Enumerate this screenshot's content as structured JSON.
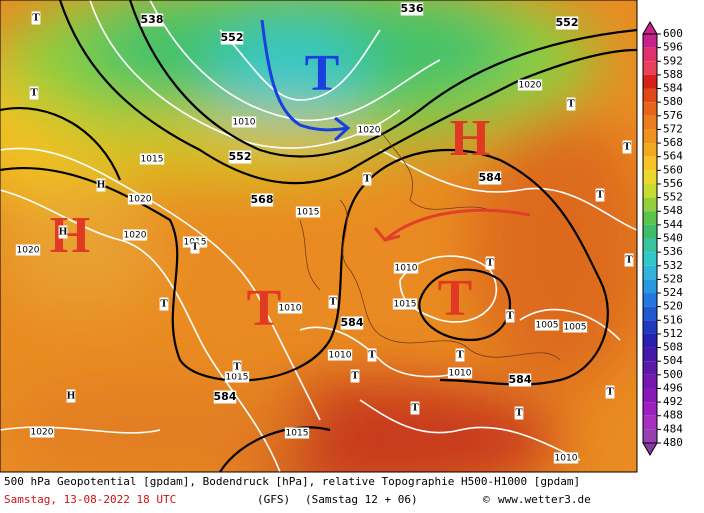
{
  "map": {
    "geopotential_labels": [
      "538",
      "552",
      "536",
      "552",
      "552",
      "568",
      "584",
      "584",
      "584",
      "584"
    ],
    "pressure_labels": [
      "1020",
      "1020",
      "1020",
      "1015",
      "1015",
      "1015",
      "1010",
      "1010",
      "1010",
      "1015",
      "1005",
      "1005",
      "1020",
      "1020",
      "1015",
      "1010",
      "1010",
      "1020",
      "1010",
      "1015"
    ],
    "red_systems": [
      "H",
      "H",
      "T",
      "T"
    ],
    "blue_systems": [
      "T"
    ],
    "small_systems": [
      "T",
      "T",
      "H",
      "H",
      "T",
      "T",
      "T",
      "H",
      "T",
      "T",
      "T",
      "T",
      "T",
      "T",
      "T",
      "T",
      "T",
      "T",
      "T",
      "T",
      "T",
      "T"
    ]
  },
  "legend": {
    "ticks": [
      600,
      596,
      592,
      588,
      584,
      580,
      576,
      572,
      568,
      564,
      560,
      556,
      552,
      548,
      544,
      540,
      536,
      532,
      528,
      524,
      520,
      516,
      512,
      508,
      504,
      500,
      496,
      492,
      488,
      484,
      480
    ]
  },
  "footer": {
    "description": "500 hPa Geopotential [gpdam], Bodendruck [hPa], relative Topographie H500-H1000 [gpdam]",
    "date": "Samstag, 13-08-2022  18 UTC",
    "model": "(GFS)",
    "run": "(Samstag 12 + 06)",
    "copyright": "©",
    "site": "www.wetter3.de"
  }
}
